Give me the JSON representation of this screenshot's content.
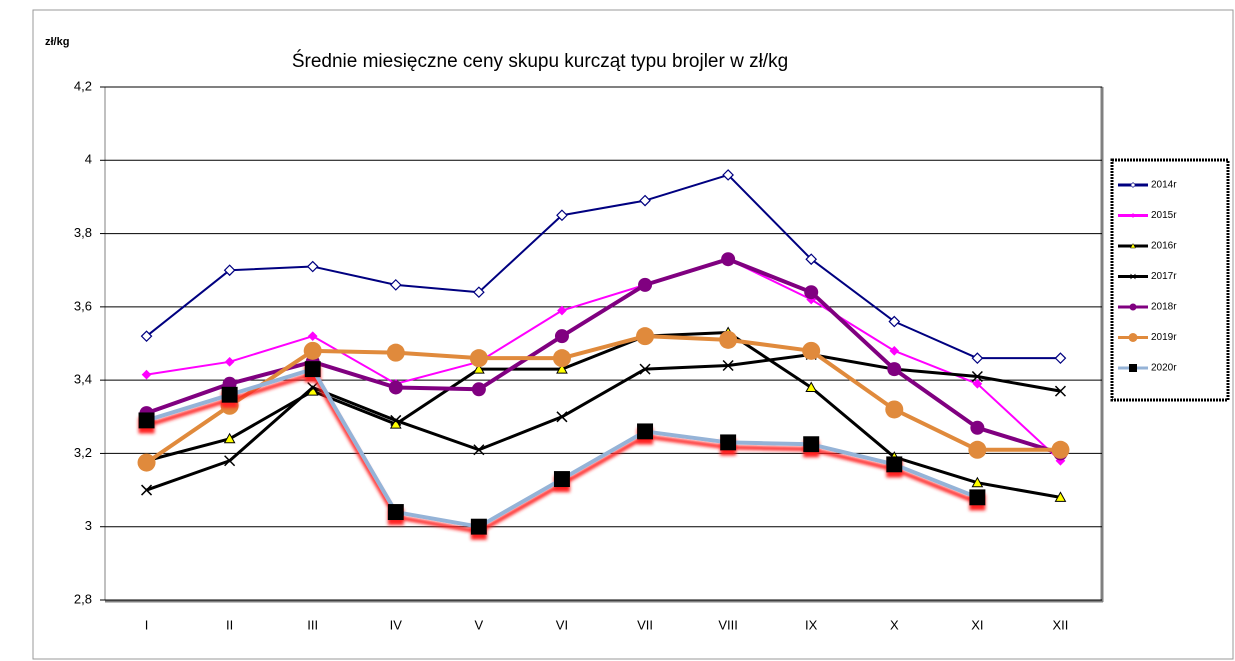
{
  "chart_data": {
    "type": "line",
    "title": "Średnie miesięczne ceny skupu kurcząt typu brojler w zł/kg",
    "y_label": "zł/kg",
    "categories": [
      "I",
      "II",
      "III",
      "IV",
      "V",
      "VI",
      "VII",
      "VIII",
      "IX",
      "X",
      "XI",
      "XII"
    ],
    "ylim": [
      2.8,
      4.2
    ],
    "yticks": [
      {
        "value": 2.8,
        "label": "2,8"
      },
      3,
      {
        "value": 3.2,
        "label": "3,2"
      },
      {
        "value": 3.4,
        "label": "3,4"
      },
      {
        "value": 3.6,
        "label": "3,6"
      },
      {
        "value": 3.8,
        "label": "3,8"
      },
      4,
      {
        "value": 4.2,
        "label": "4,2"
      }
    ],
    "grid": true,
    "legend": "right",
    "series": [
      {
        "name": "2014r",
        "color": "#000080",
        "marker": "diamond-open",
        "values": [
          3.52,
          3.7,
          3.71,
          3.66,
          3.64,
          3.85,
          3.89,
          3.96,
          3.73,
          3.56,
          3.46,
          3.46
        ]
      },
      {
        "name": "2015r",
        "color": "#ff00ff",
        "marker": "diamond",
        "values": [
          3.415,
          3.45,
          3.52,
          3.39,
          3.45,
          3.59,
          3.66,
          3.73,
          3.62,
          3.48,
          3.39,
          3.18
        ]
      },
      {
        "name": "2016r",
        "color": "#000000",
        "marker": "triangle",
        "values": [
          3.18,
          3.24,
          3.37,
          3.28,
          3.43,
          3.43,
          3.52,
          3.53,
          3.38,
          3.19,
          3.12,
          3.08
        ]
      },
      {
        "name": "2017r",
        "color": "#000000",
        "marker": "cross",
        "values": [
          3.1,
          3.18,
          3.38,
          3.29,
          3.21,
          3.3,
          3.43,
          3.44,
          3.47,
          3.43,
          3.41,
          3.37
        ]
      },
      {
        "name": "2018r",
        "color": "#800080",
        "marker": "circle",
        "values": [
          3.31,
          3.39,
          3.45,
          3.38,
          3.375,
          3.52,
          3.66,
          3.73,
          3.64,
          3.43,
          3.27,
          3.2
        ]
      },
      {
        "name": "2019r",
        "color": "#e08a3c",
        "marker": "circle-big",
        "values": [
          3.175,
          3.33,
          3.48,
          3.475,
          3.46,
          3.46,
          3.52,
          3.51,
          3.48,
          3.32,
          3.21,
          3.21
        ]
      },
      {
        "name": "2020r",
        "color": "#95b3d7",
        "marker": "square",
        "values": [
          3.29,
          3.36,
          3.43,
          3.04,
          3.0,
          3.13,
          3.26,
          3.23,
          3.225,
          3.17,
          3.08,
          null
        ]
      }
    ]
  }
}
